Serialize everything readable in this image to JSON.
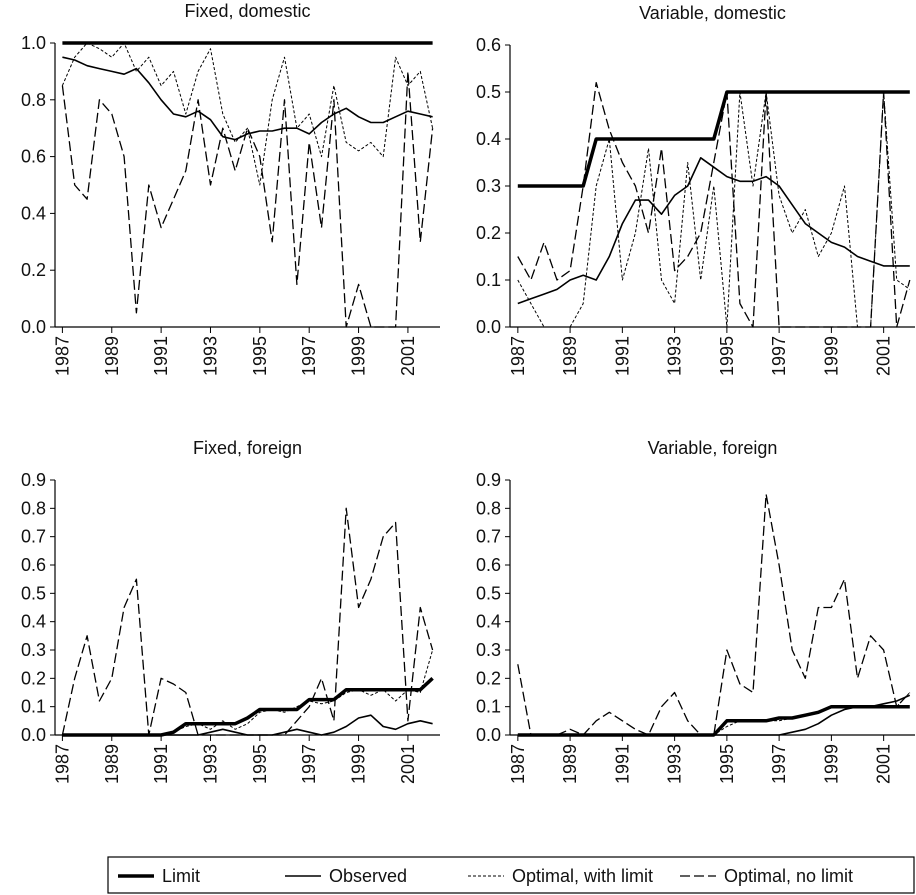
{
  "chart_data": [
    {
      "type": "line",
      "title": "Fixed, domestic",
      "x": [
        1987,
        1987.5,
        1988,
        1988.5,
        1989,
        1989.5,
        1990,
        1990.5,
        1991,
        1991.5,
        1992,
        1992.5,
        1993,
        1993.5,
        1994,
        1994.5,
        1995,
        1995.5,
        1996,
        1996.5,
        1997,
        1997.5,
        1998,
        1998.5,
        1999,
        1999.5,
        2000,
        2000.5,
        2001,
        2001.5,
        2002
      ],
      "xlim": [
        1986.7,
        2002.3
      ],
      "xticks": [
        1987,
        1989,
        1991,
        1993,
        1995,
        1997,
        1999,
        2001
      ],
      "ylim": [
        0,
        1
      ],
      "yticks": [
        {
          "value": 0,
          "label": "0.0"
        },
        0.2,
        0.4,
        0.6,
        0.8,
        {
          "value": 1,
          "label": "1.0"
        }
      ],
      "series": [
        {
          "name": "Limit",
          "color": "#000000",
          "width": 3.5,
          "linestyle": "solid",
          "values": [
            1,
            1,
            1,
            1,
            1,
            1,
            1,
            1,
            1,
            1,
            1,
            1,
            1,
            1,
            1,
            1,
            1,
            1,
            1,
            1,
            1,
            1,
            1,
            1,
            1,
            1,
            1,
            1,
            1,
            1,
            1
          ]
        },
        {
          "name": "Observed",
          "color": "#000000",
          "width": 1.6,
          "linestyle": "solid",
          "values": [
            0.95,
            0.94,
            0.92,
            0.91,
            0.9,
            0.89,
            0.91,
            0.86,
            0.8,
            0.75,
            0.74,
            0.76,
            0.73,
            0.67,
            0.66,
            0.68,
            0.69,
            0.69,
            0.7,
            0.7,
            0.68,
            0.72,
            0.75,
            0.77,
            0.74,
            0.72,
            0.72,
            0.74,
            0.76,
            0.75,
            0.74
          ]
        },
        {
          "name": "Optimal, with limit",
          "color": "#000000",
          "width": 1,
          "linestyle": "dashed",
          "values": [
            0.85,
            0.95,
            1,
            0.98,
            0.95,
            1,
            0.9,
            0.95,
            0.85,
            0.9,
            0.75,
            0.9,
            0.98,
            0.75,
            0.65,
            0.7,
            0.5,
            0.8,
            0.95,
            0.7,
            0.75,
            0.6,
            0.85,
            0.65,
            0.62,
            0.65,
            0.6,
            0.95,
            0.85,
            0.9,
            0.7
          ]
        },
        {
          "name": "Optimal, no limit",
          "color": "#000000",
          "width": 1.3,
          "linestyle": "longdash",
          "values": [
            0.85,
            0.5,
            0.45,
            0.8,
            0.75,
            0.6,
            0.05,
            0.5,
            0.35,
            0.45,
            0.55,
            0.8,
            0.5,
            0.7,
            0.55,
            0.7,
            0.6,
            0.3,
            0.8,
            0.15,
            0.65,
            0.35,
            0.8,
            0,
            0.15,
            0,
            0,
            0,
            0.9,
            0.3,
            0.7
          ]
        }
      ]
    },
    {
      "type": "line",
      "title": "Variable, domestic",
      "x": [
        1987,
        1987.5,
        1988,
        1988.5,
        1989,
        1989.5,
        1990,
        1990.5,
        1991,
        1991.5,
        1992,
        1992.5,
        1993,
        1993.5,
        1994,
        1994.5,
        1995,
        1995.5,
        1996,
        1996.5,
        1997,
        1997.5,
        1998,
        1998.5,
        1999,
        1999.5,
        2000,
        2000.5,
        2001,
        2001.5,
        2002
      ],
      "xlim": [
        1986.7,
        2002.2
      ],
      "xticks": [
        1987,
        1989,
        1991,
        1993,
        1995,
        1997,
        1999,
        2001
      ],
      "ylim": [
        0,
        0.6
      ],
      "yticks": [
        {
          "value": 0,
          "label": "0.0"
        },
        0.1,
        0.2,
        0.3,
        0.4,
        0.5,
        0.6
      ],
      "series": [
        {
          "name": "Limit",
          "color": "#000000",
          "width": 3.5,
          "linestyle": "solid",
          "values": [
            0.3,
            0.3,
            0.3,
            0.3,
            0.3,
            0.3,
            0.4,
            0.4,
            0.4,
            0.4,
            0.4,
            0.4,
            0.4,
            0.4,
            0.4,
            0.4,
            0.5,
            0.5,
            0.5,
            0.5,
            0.5,
            0.5,
            0.5,
            0.5,
            0.5,
            0.5,
            0.5,
            0.5,
            0.5,
            0.5,
            0.5
          ]
        },
        {
          "name": "Observed",
          "color": "#000000",
          "width": 1.6,
          "linestyle": "solid",
          "values": [
            0.05,
            0.06,
            0.07,
            0.08,
            0.1,
            0.11,
            0.1,
            0.15,
            0.22,
            0.27,
            0.27,
            0.24,
            0.28,
            0.3,
            0.36,
            0.34,
            0.32,
            0.31,
            0.31,
            0.32,
            0.3,
            0.26,
            0.22,
            0.2,
            0.18,
            0.17,
            0.15,
            0.14,
            0.13,
            0.13,
            0.13
          ]
        },
        {
          "name": "Optimal, with limit",
          "color": "#000000",
          "width": 1,
          "linestyle": "dashed",
          "values": [
            0.1,
            0.05,
            0,
            0,
            0,
            0.05,
            0.3,
            0.4,
            0.1,
            0.2,
            0.38,
            0.1,
            0.05,
            0.35,
            0.1,
            0.3,
            0,
            0.5,
            0.3,
            0.5,
            0.28,
            0.2,
            0.25,
            0.15,
            0.2,
            0.3,
            0,
            0,
            0.5,
            0.1,
            0.08
          ]
        },
        {
          "name": "Optimal, no limit",
          "color": "#000000",
          "width": 1.3,
          "linestyle": "longdash",
          "values": [
            0.15,
            0.1,
            0.18,
            0.1,
            0.12,
            0.3,
            0.52,
            0.42,
            0.35,
            0.3,
            0.2,
            0.38,
            0.12,
            0.15,
            0.2,
            0.35,
            0.5,
            0.05,
            0,
            0.5,
            0,
            0,
            0,
            0,
            0,
            0,
            0,
            0,
            0.5,
            0,
            0.1
          ]
        }
      ]
    },
    {
      "type": "line",
      "title": "Fixed, foreign",
      "x": [
        1987,
        1987.5,
        1988,
        1988.5,
        1989,
        1989.5,
        1990,
        1990.5,
        1991,
        1991.5,
        1992,
        1992.5,
        1993,
        1993.5,
        1994,
        1994.5,
        1995,
        1995.5,
        1996,
        1996.5,
        1997,
        1997.5,
        1998,
        1998.5,
        1999,
        1999.5,
        2000,
        2000.5,
        2001,
        2001.5,
        2002
      ],
      "xlim": [
        1986.7,
        2002.3
      ],
      "xticks": [
        1987,
        1989,
        1991,
        1993,
        1995,
        1997,
        1999,
        2001
      ],
      "ylim": [
        0,
        0.9
      ],
      "yticks": [
        {
          "value": 0,
          "label": "0.0"
        },
        0.1,
        0.2,
        0.3,
        0.4,
        0.5,
        0.6,
        0.7,
        0.8,
        0.9
      ],
      "series": [
        {
          "name": "Limit",
          "color": "#000000",
          "width": 3.5,
          "linestyle": "solid",
          "values": [
            0,
            0,
            0,
            0,
            0,
            0,
            0,
            0,
            0,
            0.01,
            0.04,
            0.04,
            0.04,
            0.04,
            0.04,
            0.06,
            0.09,
            0.09,
            0.09,
            0.09,
            0.125,
            0.125,
            0.125,
            0.16,
            0.16,
            0.16,
            0.16,
            0.16,
            0.16,
            0.16,
            0.2
          ]
        },
        {
          "name": "Observed",
          "color": "#000000",
          "width": 1.6,
          "linestyle": "solid",
          "values": [
            0,
            0,
            0,
            0,
            0,
            0,
            0,
            0,
            0,
            0,
            0,
            0,
            0.01,
            0.02,
            0.01,
            0,
            0,
            0,
            0.01,
            0.02,
            0.01,
            0,
            0.01,
            0.03,
            0.06,
            0.07,
            0.03,
            0.02,
            0.04,
            0.05,
            0.04
          ]
        },
        {
          "name": "Optimal, with limit",
          "color": "#000000",
          "width": 1,
          "linestyle": "dashed",
          "values": [
            0,
            0,
            0,
            0,
            0,
            0,
            0,
            0,
            0,
            0.01,
            0.03,
            0.04,
            0.02,
            0.05,
            0.02,
            0.04,
            0.08,
            0.09,
            0.08,
            0.1,
            0.12,
            0.11,
            0.12,
            0.15,
            0.16,
            0.14,
            0.16,
            0.12,
            0.16,
            0.15,
            0.3
          ]
        },
        {
          "name": "Optimal, no limit",
          "color": "#000000",
          "width": 1.3,
          "linestyle": "longdash",
          "values": [
            0,
            0.2,
            0.35,
            0.12,
            0.2,
            0.45,
            0.55,
            0,
            0.2,
            0.18,
            0.15,
            0,
            0,
            0,
            0,
            0,
            0,
            0,
            0,
            0.05,
            0.1,
            0.2,
            0.05,
            0.8,
            0.45,
            0.55,
            0.7,
            0.75,
            0.05,
            0.45,
            0.3
          ]
        }
      ]
    },
    {
      "type": "line",
      "title": "Variable, foreign",
      "x": [
        1987,
        1987.5,
        1988,
        1988.5,
        1989,
        1989.5,
        1990,
        1990.5,
        1991,
        1991.5,
        1992,
        1992.5,
        1993,
        1993.5,
        1994,
        1994.5,
        1995,
        1995.5,
        1996,
        1996.5,
        1997,
        1997.5,
        1998,
        1998.5,
        1999,
        1999.5,
        2000,
        2000.5,
        2001,
        2001.5,
        2002
      ],
      "xlim": [
        1986.7,
        2002.2
      ],
      "xticks": [
        1987,
        1989,
        1991,
        1993,
        1995,
        1997,
        1999,
        2001
      ],
      "ylim": [
        0,
        0.9
      ],
      "yticks": [
        {
          "value": 0,
          "label": "0.0"
        },
        0.1,
        0.2,
        0.3,
        0.4,
        0.5,
        0.6,
        0.7,
        0.8,
        0.9
      ],
      "series": [
        {
          "name": "Limit",
          "color": "#000000",
          "width": 3.5,
          "linestyle": "solid",
          "values": [
            0,
            0,
            0,
            0,
            0,
            0,
            0,
            0,
            0,
            0,
            0,
            0,
            0,
            0,
            0,
            0,
            0.05,
            0.05,
            0.05,
            0.05,
            0.06,
            0.06,
            0.07,
            0.08,
            0.1,
            0.1,
            0.1,
            0.1,
            0.1,
            0.1,
            0.1
          ]
        },
        {
          "name": "Observed",
          "color": "#000000",
          "width": 1.6,
          "linestyle": "solid",
          "values": [
            0,
            0,
            0,
            0,
            0,
            0,
            0,
            0,
            0,
            0,
            0,
            0,
            0,
            0,
            0,
            0,
            0,
            0,
            0,
            0,
            0,
            0.01,
            0.02,
            0.04,
            0.07,
            0.09,
            0.1,
            0.1,
            0.11,
            0.12,
            0.14
          ]
        },
        {
          "name": "Optimal, with limit",
          "color": "#000000",
          "width": 1,
          "linestyle": "dashed",
          "values": [
            0,
            0,
            0,
            0,
            0,
            0,
            0,
            0,
            0,
            0,
            0,
            0,
            0,
            0,
            0,
            0,
            0.03,
            0.05,
            0.05,
            0.05,
            0.05,
            0.06,
            0.07,
            0.08,
            0.1,
            0.1,
            0.1,
            0.1,
            0.1,
            0.1,
            0.15
          ]
        },
        {
          "name": "Optimal, no limit",
          "color": "#000000",
          "width": 1.3,
          "linestyle": "longdash",
          "values": [
            0.25,
            0,
            0,
            0,
            0.02,
            0,
            0.05,
            0.08,
            0.05,
            0.02,
            0,
            0.1,
            0.15,
            0.05,
            0,
            0,
            0.3,
            0.18,
            0.15,
            0.85,
            0.6,
            0.3,
            0.2,
            0.45,
            0.45,
            0.55,
            0.2,
            0.35,
            0.3,
            0.1,
            0.15
          ]
        }
      ]
    }
  ]
}
